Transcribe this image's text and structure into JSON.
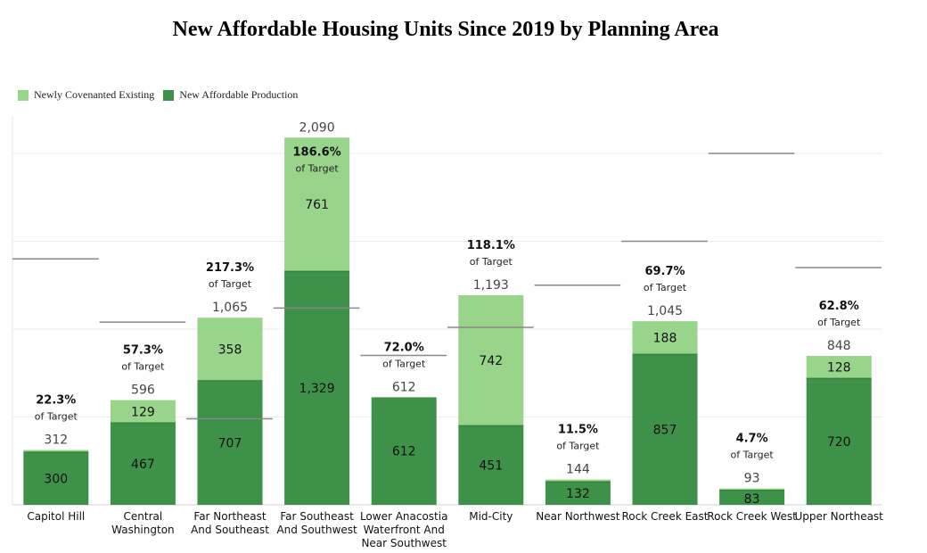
{
  "chart_data": {
    "type": "bar",
    "stacked": true,
    "title": "New Affordable Housing Units Since 2019 by Planning Area",
    "xlabel": "",
    "ylabel": "",
    "ylim": [
      0,
      2100
    ],
    "grid": true,
    "legend_position": "top-left",
    "categories": [
      "Capitol Hill",
      "Central\nWashington",
      "Far Northeast\nAnd Southeast",
      "Far Southeast\nAnd Southwest",
      "Lower Anacostia\nWaterfront And\nNear Southwest",
      "Mid-City",
      "Near Northwest",
      "Rock Creek East",
      "Rock Creek West",
      "Upper Northeast"
    ],
    "series": [
      {
        "name": "New Affordable Production",
        "color": "#3e9149",
        "values": [
          300,
          467,
          707,
          1329,
          612,
          451,
          132,
          857,
          83,
          720
        ],
        "labels": [
          "300",
          "467",
          "707",
          "1,329",
          "612",
          "451",
          "132",
          "857",
          "83",
          "720"
        ]
      },
      {
        "name": "Newly Covenanted Existing",
        "color": "#98d58b",
        "values": [
          12,
          129,
          358,
          761,
          0,
          742,
          12,
          188,
          10,
          128
        ],
        "labels": [
          "",
          "129",
          "358",
          "761",
          "",
          "742",
          "",
          "188",
          "",
          "128"
        ]
      }
    ],
    "totals": [
      "312",
      "596",
      "1,065",
      "2,090",
      "612",
      "1,193",
      "144",
      "1,045",
      "93",
      "848"
    ],
    "total_values": [
      312,
      596,
      1065,
      2090,
      612,
      1193,
      144,
      1045,
      93,
      848
    ],
    "targets": [
      1400,
      1040,
      490,
      1120,
      850,
      1010,
      1250,
      1500,
      2000,
      1350
    ],
    "target_pct": [
      "22.3%",
      "57.3%",
      "217.3%",
      "186.6%",
      "72.0%",
      "118.1%",
      "11.5%",
      "69.7%",
      "4.7%",
      "62.8%"
    ],
    "target_suffix": "of Target",
    "legend_order": [
      "Newly Covenanted Existing",
      "New Affordable Production"
    ]
  }
}
